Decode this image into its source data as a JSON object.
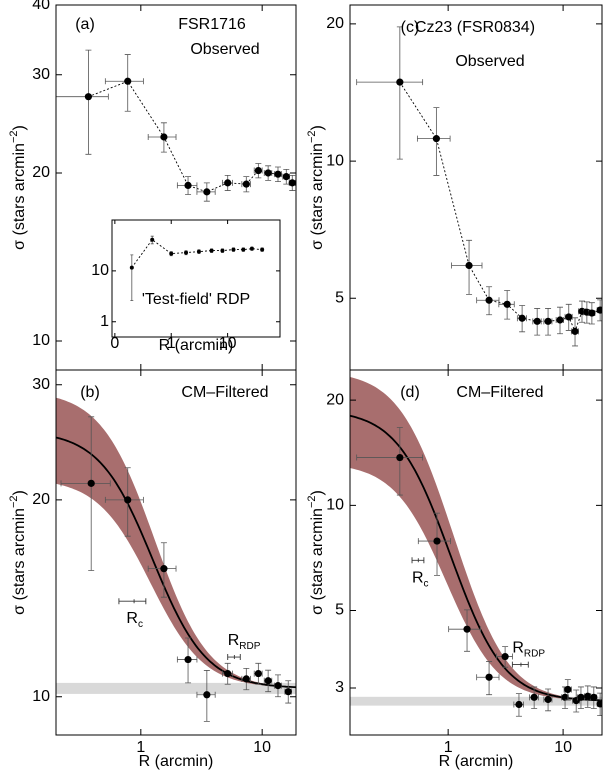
{
  "chart_data": [
    {
      "type": "line",
      "label": "(a)",
      "title": "FSR1716",
      "subtitle": "Observed",
      "x": [
        0.37,
        0.78,
        1.55,
        2.45,
        3.5,
        5.2,
        7.4,
        9.3,
        11.2,
        13.5,
        15.8,
        17.7
      ],
      "xerr": [
        0.17,
        0.27,
        0.4,
        0.45,
        0.6,
        0.5,
        0.6,
        0.7,
        0.8,
        0.9,
        1.0,
        1.0
      ],
      "values": [
        27.4,
        29.2,
        23.2,
        19.0,
        18.5,
        19.2,
        19.1,
        20.2,
        20.0,
        19.9,
        19.7,
        19.2
      ],
      "yerr": [
        5.8,
        3.4,
        1.4,
        0.7,
        0.7,
        0.6,
        0.6,
        0.6,
        0.6,
        0.6,
        0.6,
        0.6
      ],
      "xlim": [
        0.2,
        19
      ],
      "ylim": [
        8.87,
        40
      ],
      "xticks": [
        1,
        10
      ],
      "yticks": [
        10,
        20,
        30,
        40
      ],
      "xscale": "log",
      "yscale": "log",
      "ylabel": [
        "σ (stars arcmin",
        "−2",
        ")"
      ],
      "color": "#000000",
      "linestyle": "dotted"
    },
    {
      "type": "fit",
      "label": "(b)",
      "title": "CM–Filtered",
      "x": [
        0.39,
        0.78,
        1.55,
        2.45,
        3.5,
        5.2,
        7.4,
        9.3,
        11.2,
        13.5,
        16.4
      ],
      "xerr": [
        0.17,
        0.27,
        0.4,
        0.45,
        0.6,
        0.5,
        0.6,
        0.7,
        0.8,
        0.9,
        1.0
      ],
      "values": [
        21.2,
        20.0,
        15.7,
        11.4,
        10.07,
        10.85,
        10.65,
        10.85,
        10.58,
        10.4,
        10.18
      ],
      "yerr": [
        5.6,
        2.4,
        1.5,
        0.9,
        0.9,
        0.4,
        0.4,
        0.4,
        0.4,
        0.4,
        0.4
      ],
      "xlim": [
        0.2,
        19
      ],
      "ylim": [
        8.74,
        31.6
      ],
      "xticks": [
        1,
        10
      ],
      "yticks": [
        10,
        20,
        30
      ],
      "xscale": "log",
      "yscale": "log",
      "ylabel": [
        "σ (stars arcmin",
        "−2",
        ")"
      ],
      "xlabel": "R (arcmin)",
      "fit": {
        "bg": 10.3,
        "sigma0": 15.2,
        "rc": 1.0,
        "sigma0_err": 3.9,
        "bg_err": 0.2
      },
      "color": "#000000",
      "band_color": "#a86e6e",
      "bg_color": "#d9d9d9",
      "markers": [
        {
          "label": [
            "R",
            "c"
          ],
          "x": 0.88,
          "xerr": 0.22,
          "y": 14.0
        },
        {
          "label": [
            "R",
            "RDP"
          ],
          "x": 5.9,
          "xerr": 0.7,
          "y": 11.5
        }
      ]
    },
    {
      "type": "line",
      "label": "(c)",
      "title": "Cz23 (FSR0834)",
      "subtitle": "Observed",
      "x": [
        0.38,
        0.79,
        1.52,
        2.27,
        3.26,
        4.4,
        5.95,
        7.4,
        9.4,
        11.2,
        12.7,
        14.6,
        16.1,
        17.8,
        21.0
      ],
      "xerr": [
        0.22,
        0.25,
        0.45,
        0.5,
        0.5,
        0.4,
        0.5,
        0.6,
        0.7,
        0.8,
        0.9,
        1.0,
        1.0,
        1.1,
        1.2
      ],
      "values": [
        14.9,
        11.2,
        5.9,
        4.95,
        4.85,
        4.52,
        4.45,
        4.45,
        4.48,
        4.55,
        4.23,
        4.68,
        4.66,
        4.64,
        4.71
      ],
      "yerr": [
        4.8,
        1.9,
        0.8,
        0.35,
        0.35,
        0.3,
        0.3,
        0.3,
        0.3,
        0.3,
        0.3,
        0.25,
        0.25,
        0.25,
        0.25
      ],
      "xlim": [
        0.14,
        21.8
      ],
      "ylim": [
        3.48,
        22
      ],
      "xticks": [
        1,
        10
      ],
      "yticks": [
        5,
        10,
        20
      ],
      "xscale": "log",
      "yscale": "log",
      "ylabel": [
        "σ (stars arcmin",
        "−2",
        ")"
      ],
      "color": "#000000",
      "linestyle": "dotted"
    },
    {
      "type": "fit",
      "label": "(d)",
      "title": "CM–Filtered",
      "x": [
        0.38,
        0.8,
        1.46,
        2.27,
        3.13,
        4.13,
        5.6,
        7.4,
        10.4,
        11.0,
        13.0,
        14.3,
        16.4,
        18.5,
        21.0
      ],
      "xerr": [
        0.22,
        0.25,
        0.45,
        0.5,
        0.5,
        0.4,
        0.5,
        0.6,
        0.7,
        0.8,
        0.9,
        1.0,
        1.0,
        1.1,
        1.2
      ],
      "values": [
        13.7,
        7.9,
        4.42,
        3.22,
        3.69,
        2.69,
        2.82,
        2.78,
        2.82,
        2.97,
        2.76,
        2.82,
        2.84,
        2.82,
        2.7
      ],
      "yerr": [
        3.0,
        1.6,
        0.6,
        0.35,
        0.25,
        0.2,
        0.2,
        0.2,
        0.2,
        0.2,
        0.2,
        0.2,
        0.2,
        0.2,
        0.2
      ],
      "xlim": [
        0.14,
        21.8
      ],
      "ylim": [
        2.2,
        24.4
      ],
      "xticks": [
        1,
        10
      ],
      "yticks": [
        3,
        5,
        10,
        20
      ],
      "xscale": "log",
      "yscale": "log",
      "ylabel": [
        "σ (stars arcmin",
        "−2",
        ")"
      ],
      "xlabel": "R (arcmin)",
      "fit": {
        "bg": 2.75,
        "sigma0": 16,
        "rc": 0.65,
        "sigma0_err": 5.5,
        "bg_err": 0.08
      },
      "color": "#000000",
      "band_color": "#a86e6e",
      "bg_color": "#d9d9d9",
      "markers": [
        {
          "label": [
            "R",
            "c"
          ],
          "x": 0.55,
          "xerr": 0.065,
          "y": 6.96
        },
        {
          "label": [
            "R",
            "RDP"
          ],
          "x": 4.3,
          "xerr": 0.68,
          "y": 3.5
        }
      ]
    },
    {
      "type": "line",
      "title": "'Test-field' RDP",
      "x": [
        0.2,
        0.46,
        1,
        1.83,
        3.1,
        5.2,
        8.1,
        12.7,
        19,
        27,
        41
      ],
      "values": [
        11.6,
        41,
        21.8,
        22.8,
        23.9,
        25,
        25,
        26.2,
        26.2,
        27.3,
        26.2
      ],
      "yerr": [
        9,
        7,
        2,
        2,
        2,
        2,
        2,
        2,
        2,
        2,
        2
      ],
      "xlim": [
        0.089,
        85
      ],
      "ylim": [
        0.5,
        100
      ],
      "xticks": [
        {
          "value": 0.1,
          "label": "0"
        },
        1,
        10
      ],
      "yticks": [
        1,
        10
      ],
      "xscale": "log",
      "yscale": "log",
      "xlabel": "R (arcmin)",
      "color": "#000000",
      "linestyle": "dotted"
    }
  ]
}
